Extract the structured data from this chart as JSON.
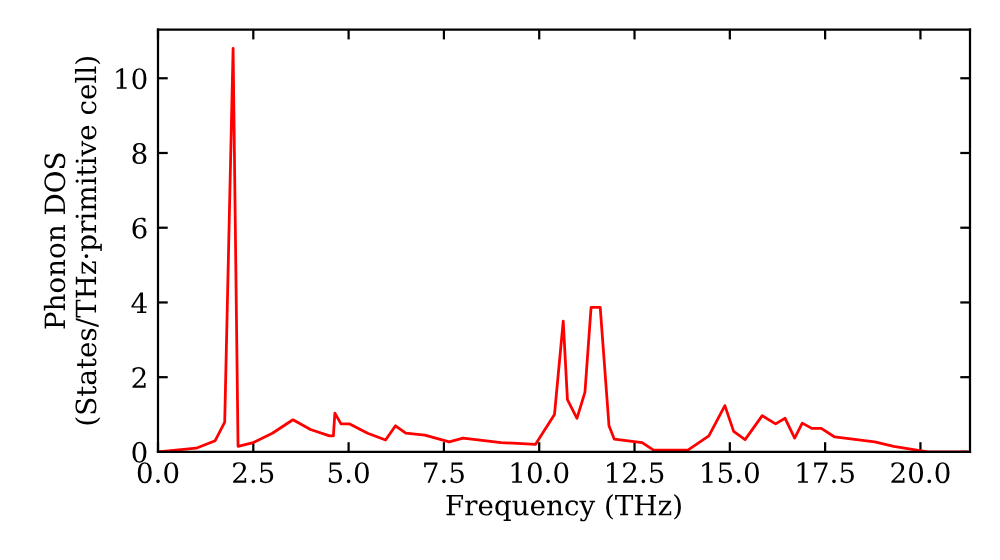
{
  "chart_data": {
    "type": "line",
    "xlabel": "Frequency (THz)",
    "ylabel": "Phonon DOS\n(States/THz·primitive cell)",
    "x": [
      0,
      1.0,
      1.5,
      1.75,
      1.97,
      2.1,
      2.5,
      3.0,
      3.3,
      3.54,
      4.0,
      4.5,
      4.6,
      4.64,
      4.8,
      5.03,
      5.5,
      5.97,
      6.23,
      6.5,
      7.0,
      7.64,
      8.0,
      9.0,
      9.9,
      10.4,
      10.63,
      10.74,
      10.99,
      11.2,
      11.36,
      11.6,
      11.83,
      11.97,
      12.7,
      13.0,
      13.9,
      14.45,
      14.87,
      15.1,
      15.4,
      15.85,
      16.2,
      16.45,
      16.7,
      16.9,
      17.15,
      17.4,
      17.75,
      18.8,
      19.3,
      19.9,
      20.2,
      21.2
    ],
    "series": [
      {
        "color": "#ff0000",
        "values": [
          0,
          0.1,
          0.3,
          0.8,
          10.8,
          0.15,
          0.25,
          0.5,
          0.7,
          0.86,
          0.6,
          0.43,
          0.43,
          1.04,
          0.75,
          0.75,
          0.5,
          0.32,
          0.7,
          0.5,
          0.45,
          0.27,
          0.37,
          0.25,
          0.2,
          1.0,
          3.5,
          1.4,
          0.9,
          1.6,
          3.87,
          3.87,
          0.7,
          0.34,
          0.25,
          0.05,
          0.05,
          0.43,
          1.24,
          0.55,
          0.33,
          0.97,
          0.75,
          0.9,
          0.37,
          0.77,
          0.63,
          0.63,
          0.4,
          0.27,
          0.15,
          0.05,
          0,
          0
        ]
      }
    ],
    "xlim": [
      0,
      21.3
    ],
    "ylim": [
      0,
      11.3
    ],
    "xticks": [
      {
        "value": 0,
        "label": "0.0"
      },
      {
        "value": 2.5,
        "label": "2.5"
      },
      {
        "value": 5,
        "label": "5.0"
      },
      {
        "value": 7.5,
        "label": "7.5"
      },
      {
        "value": 10,
        "label": "10.0"
      },
      {
        "value": 12.5,
        "label": "12.5"
      },
      {
        "value": 15,
        "label": "15.0"
      },
      {
        "value": 17.5,
        "label": "17.5"
      },
      {
        "value": 20,
        "label": "20.0"
      }
    ],
    "yticks": [
      0,
      2,
      4,
      6,
      8,
      10
    ],
    "grid": false,
    "legend": false,
    "marker": "none",
    "line_style": "solid"
  }
}
